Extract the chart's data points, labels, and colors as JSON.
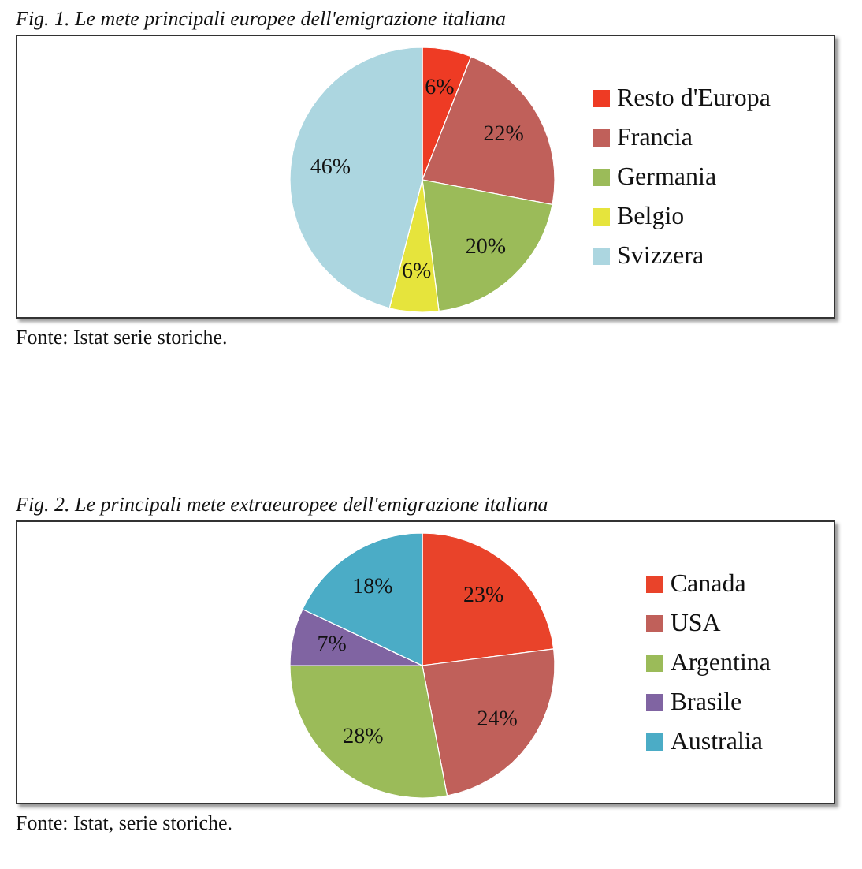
{
  "chart_data": [
    {
      "type": "pie",
      "title": "Fig. 1. Le mete principali europee dell'emigrazione italiana",
      "categories": [
        "Resto d'Europa",
        "Francia",
        "Germania",
        "Belgio",
        "Svizzera"
      ],
      "values": [
        6,
        22,
        20,
        6,
        46
      ],
      "colors": [
        "#ee3b24",
        "#c0605a",
        "#9bbb59",
        "#e6e43c",
        "#acd6e0"
      ],
      "value_labels": [
        "6%",
        "22%",
        "20%",
        "6%",
        "46%"
      ],
      "legend": "right",
      "annotations": [
        "Fonte: Istat serie storiche."
      ]
    },
    {
      "type": "pie",
      "title": "Fig. 2. Le principali mete extraeuropee dell'emigrazione italiana",
      "categories": [
        "Canada",
        "USA",
        "Argentina",
        "Brasile",
        "Australia"
      ],
      "values": [
        23,
        24,
        28,
        7,
        18
      ],
      "colors": [
        "#e9432a",
        "#c0605a",
        "#9bbb59",
        "#8064a2",
        "#4bacc6"
      ],
      "value_labels": [
        "23%",
        "24%",
        "28%",
        "7%",
        "18%"
      ],
      "legend": "right",
      "annotations": [
        "Fonte: Istat, serie storiche."
      ]
    }
  ]
}
